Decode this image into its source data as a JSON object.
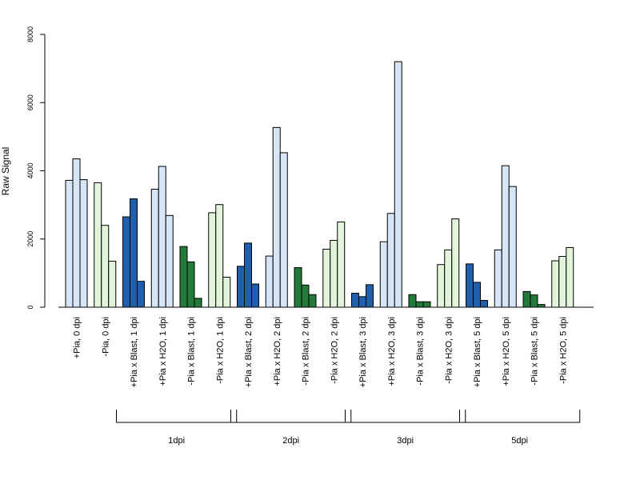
{
  "chart_data": {
    "type": "bar",
    "ylabel": "Raw Signal",
    "xlabel": "",
    "ylim": [
      0,
      8000
    ],
    "y_ticks": [
      "0",
      "2000",
      "4000",
      "6000",
      "8000"
    ],
    "grid": false,
    "colors": {
      "light_blue": "#d6e6f6",
      "dark_blue": "#1f5fab",
      "light_green": "#e2f5da",
      "dark_green": "#237a3a",
      "outline": "#000000"
    },
    "groups": [
      {
        "label": "+Pia, 0 dpi",
        "color": "light_blue",
        "values": [
          3720,
          4350,
          3740
        ]
      },
      {
        "label": "-Pia, 0 dpi",
        "color": "light_green",
        "values": [
          3650,
          2400,
          1350
        ]
      },
      {
        "label": "+Pia x Blast, 1 dpi",
        "color": "dark_blue",
        "values": [
          2650,
          3180,
          760
        ]
      },
      {
        "label": "+Pia x H2O, 1 dpi",
        "color": "light_blue",
        "values": [
          3460,
          4130,
          2690
        ]
      },
      {
        "label": "-Pia x Blast, 1 dpi",
        "color": "dark_green",
        "values": [
          1780,
          1330,
          260
        ]
      },
      {
        "label": "-Pia x H2O, 1 dpi",
        "color": "light_green",
        "values": [
          2770,
          3010,
          880
        ]
      },
      {
        "label": "+Pia x Blast, 2 dpi",
        "color": "dark_blue",
        "values": [
          1200,
          1880,
          680
        ]
      },
      {
        "label": "+Pia x H2O, 2 dpi",
        "color": "light_blue",
        "values": [
          1500,
          5270,
          4530
        ]
      },
      {
        "label": "-Pia x Blast, 2 dpi",
        "color": "dark_green",
        "values": [
          1160,
          650,
          370
        ]
      },
      {
        "label": "-Pia x H2O, 2 dpi",
        "color": "light_green",
        "values": [
          1700,
          1960,
          2500
        ]
      },
      {
        "label": "+Pia x Blast, 3 dpi",
        "color": "dark_blue",
        "values": [
          410,
          310,
          660
        ]
      },
      {
        "label": "+Pia x H2O, 3 dpi",
        "color": "light_blue",
        "values": [
          1920,
          2750,
          7200
        ]
      },
      {
        "label": "-Pia x Blast, 3 dpi",
        "color": "dark_green",
        "values": [
          370,
          160,
          160
        ]
      },
      {
        "label": "-Pia x H2O, 3 dpi",
        "color": "light_green",
        "values": [
          1250,
          1680,
          2590
        ]
      },
      {
        "label": "+Pia x Blast, 5 dpi",
        "color": "dark_blue",
        "values": [
          1270,
          730,
          200
        ]
      },
      {
        "label": "+Pia x H2O, 5 dpi",
        "color": "light_blue",
        "values": [
          1680,
          4150,
          3540
        ]
      },
      {
        "label": "-Pia x Blast, 5 dpi",
        "color": "dark_green",
        "values": [
          460,
          360,
          80
        ]
      },
      {
        "label": "-Pia x H2O, 5 dpi",
        "color": "light_green",
        "values": [
          1360,
          1490,
          1750
        ]
      }
    ],
    "brackets": [
      {
        "label": "1dpi",
        "from_group": 2,
        "to_group": 5
      },
      {
        "label": "2dpi",
        "from_group": 6,
        "to_group": 9
      },
      {
        "label": "3dpi",
        "from_group": 10,
        "to_group": 13
      },
      {
        "label": "5dpi",
        "from_group": 14,
        "to_group": 17
      }
    ]
  }
}
